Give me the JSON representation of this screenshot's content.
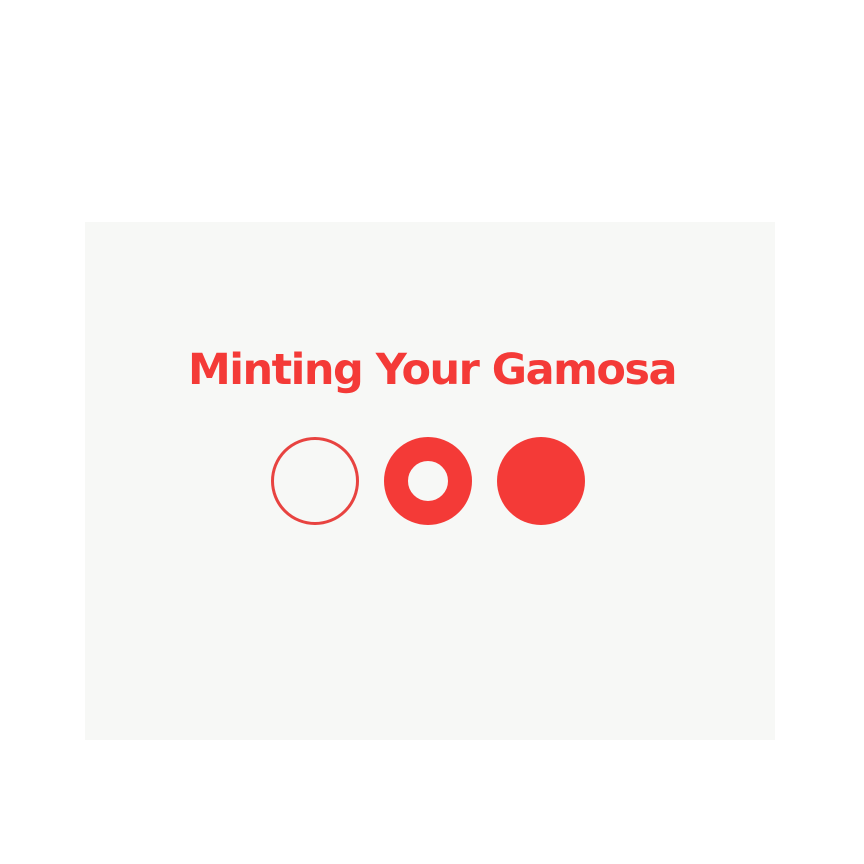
{
  "loader": {
    "title": "Minting Your Gamosa",
    "steps": [
      {
        "state": "pending",
        "icon": "empty-circle-icon"
      },
      {
        "state": "in-progress",
        "icon": "ring-circle-icon"
      },
      {
        "state": "complete",
        "icon": "filled-circle-icon"
      }
    ]
  },
  "colors": {
    "accent": "#f43a37",
    "card_background": "#f7f8f6",
    "page_background": "#ffffff"
  }
}
